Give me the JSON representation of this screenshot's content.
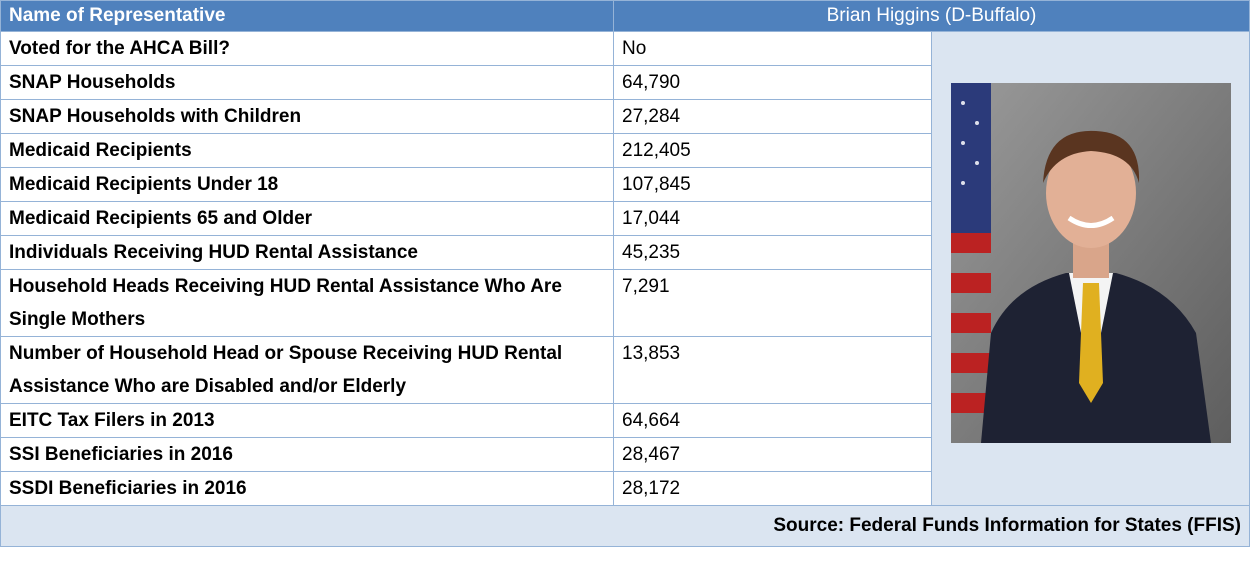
{
  "header": {
    "label": "Name of Representative",
    "value": "Brian Higgins (D-Buffalo)"
  },
  "rows": [
    [
      "Voted for the AHCA Bill?",
      "No"
    ],
    [
      "SNAP Households",
      "64,790"
    ],
    [
      "SNAP Households with Children",
      "27,284"
    ],
    [
      "Medicaid Recipients",
      "212,405"
    ],
    [
      "Medicaid Recipients Under 18",
      "107,845"
    ],
    [
      "Medicaid Recipients 65 and Older",
      "17,044"
    ],
    [
      "Individuals Receiving HUD Rental Assistance",
      "45,235"
    ],
    [
      "Household Heads Receiving HUD Rental Assistance Who Are Single Mothers",
      "7,291"
    ],
    [
      "Number of Household Head or Spouse Receiving HUD Rental Assistance Who are Disabled and/or Elderly",
      "13,853"
    ],
    [
      "EITC Tax Filers in 2013",
      "64,664"
    ],
    [
      "SSI Beneficiaries in 2016",
      "28,467"
    ],
    [
      "SSDI Beneficiaries in 2016",
      "28,172"
    ]
  ],
  "source": "Source: Federal Funds Information for States (FFIS)"
}
